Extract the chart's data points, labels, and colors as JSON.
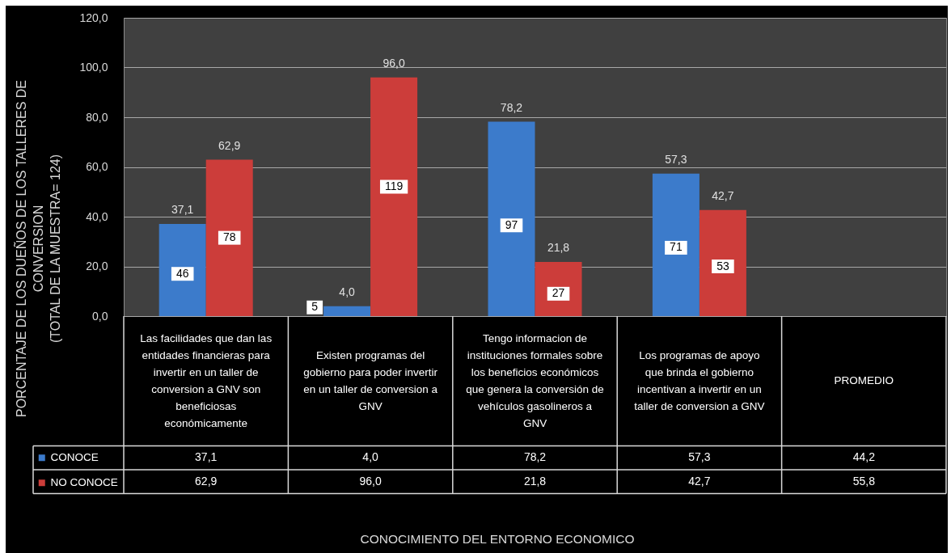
{
  "chart_data": {
    "type": "bar",
    "ylabel": "PORCENTAJE DE LOS DUEÑOS DE LOS TALLERES DE CONVERSION\n(TOTAL DE LA MUESTRA= 124)",
    "categories": [
      "Las facilidades que dan las entidades financieras para invertir en un taller de conversion a GNV son beneficiosas económicamente",
      "Existen programas del gobierno para poder invertir en un taller de conversion a GNV",
      "Tengo informacion de instituciones formales sobre los beneficios económicos que genera la conversión de vehículos gasolineros a GNV",
      "Los programas de apoyo que brinda el gobierno incentivan a invertir en un taller de conversion a GNV",
      "PROMEDIO"
    ],
    "series": [
      {
        "name": "CONOCE",
        "color": "#3c7bcb",
        "values": [
          37.1,
          4.0,
          78.2,
          57.3,
          null
        ],
        "value_labels": [
          "37,1",
          "4,0",
          "78,2",
          "57,3",
          "44,2"
        ]
      },
      {
        "name": "NO CONOCE",
        "color": "#cc3d3a",
        "values": [
          62.9,
          96.0,
          21.8,
          42.7,
          null
        ],
        "value_labels": [
          "62,9",
          "96,0",
          "21,8",
          "42,7",
          "55,8"
        ]
      }
    ],
    "ylim": [
      0,
      120
    ],
    "yticks": [
      {
        "value": 0,
        "label": "0,0"
      },
      {
        "value": 20,
        "label": "20,0"
      },
      {
        "value": 40,
        "label": "40,0"
      },
      {
        "value": 60,
        "label": "60,0"
      },
      {
        "value": 80,
        "label": "80,0"
      },
      {
        "value": 100,
        "label": "100,0"
      },
      {
        "value": 120,
        "label": "120,0"
      }
    ],
    "grid": "y",
    "legend": "bottom left",
    "annotations": [
      {
        "text": "46",
        "x": "Las facilidades que dan las entidades financieras para invertir en un taller de conversion a GNV son beneficiosas económicamente",
        "y": 17
      },
      {
        "text": "78",
        "x": "Las facilidades que dan las entidades financieras para invertir en un taller de conversion a GNV son beneficiosas económicamente",
        "y": 31.5
      },
      {
        "text": "5",
        "y": 3.5
      },
      {
        "text": "119",
        "x": "Existen programas del gobierno para poder invertir en un taller de conversion a GNV",
        "y": 52
      },
      {
        "text": "97",
        "x": "Tengo informacion de instituciones formales sobre los beneficios económicos que genera la conversión de vehículos gasolineros a GNV",
        "y": 36.5
      },
      {
        "text": "27",
        "x": "Tengo informacion de instituciones formales sobre los beneficios económicos que genera la conversión de vehículos gasolineros a GNV",
        "y": 9
      },
      {
        "text": "71",
        "x": "Los programas de apoyo que brinda el gobierno incentivan a invertir en un taller de conversion a GNV",
        "y": 27.5
      },
      {
        "text": "53",
        "x": "Los programas de apoyo que brinda el gobierno incentivan a invertir en un taller de conversion a GNV",
        "y": 20
      },
      "CONOCIMIENTO DEL ENTORNO ECONOMICO"
    ]
  }
}
